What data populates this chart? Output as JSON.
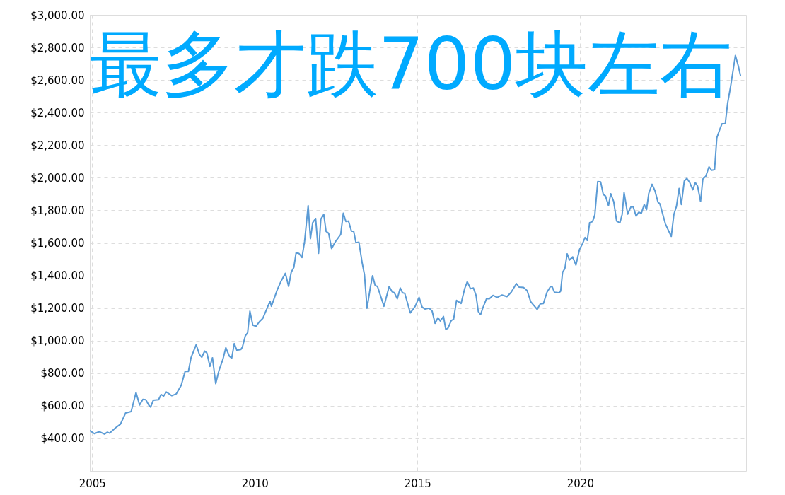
{
  "chart_data": {
    "type": "line",
    "annotations": [
      "最多才跌700块左右"
    ],
    "xlim": [
      2004.93,
      2025.1
    ],
    "xticks": [
      2005,
      2010,
      2015,
      2020,
      {
        "value": 2025,
        "label": null
      }
    ],
    "ylim": [
      200,
      3000
    ],
    "yticks": [
      {
        "value": 200,
        "label": null
      },
      {
        "value": 400,
        "label": "$400.00"
      },
      {
        "value": 600,
        "label": "$600.00"
      },
      {
        "value": 800,
        "label": "$800.00"
      },
      {
        "value": 1000,
        "label": "$1,000.00"
      },
      {
        "value": 1200,
        "label": "$1,200.00"
      },
      {
        "value": 1400,
        "label": "$1,400.00"
      },
      {
        "value": 1600,
        "label": "$1,600.00"
      },
      {
        "value": 1800,
        "label": "$1,800.00"
      },
      {
        "value": 2000,
        "label": "$2,000.00"
      },
      {
        "value": 2200,
        "label": "$2,200.00"
      },
      {
        "value": 2400,
        "label": "$2,400.00"
      },
      {
        "value": 2600,
        "label": "$2,600.00"
      },
      {
        "value": 2800,
        "label": "$2,800.00"
      },
      {
        "value": 3000,
        "label": "$3,000.00"
      }
    ],
    "grid": true,
    "marker": "none",
    "line_style": "solid",
    "series": [
      {
        "color": "#5b9bd5",
        "x": [
          2004.93,
          2005.07,
          2005.22,
          2005.38,
          2005.47,
          2005.54,
          2005.72,
          2005.87,
          2006.03,
          2006.2,
          2006.35,
          2006.46,
          2006.56,
          2006.65,
          2006.74,
          2006.8,
          2006.88,
          2007.04,
          2007.12,
          2007.2,
          2007.28,
          2007.45,
          2007.59,
          2007.74,
          2007.86,
          2007.96,
          2008.04,
          2008.2,
          2008.3,
          2008.37,
          2008.46,
          2008.53,
          2008.62,
          2008.7,
          2008.8,
          2008.9,
          2009.02,
          2009.11,
          2009.22,
          2009.29,
          2009.37,
          2009.45,
          2009.57,
          2009.62,
          2009.71,
          2009.78,
          2009.85,
          2009.94,
          2010.04,
          2010.14,
          2010.25,
          2010.47,
          2010.51,
          2010.69,
          2010.8,
          2010.94,
          2011.04,
          2011.12,
          2011.2,
          2011.27,
          2011.36,
          2011.45,
          2011.53,
          2011.64,
          2011.71,
          2011.78,
          2011.87,
          2011.96,
          2012.03,
          2012.12,
          2012.19,
          2012.27,
          2012.36,
          2012.48,
          2012.64,
          2012.72,
          2012.8,
          2012.88,
          2012.97,
          2013.04,
          2013.11,
          2013.2,
          2013.3,
          2013.37,
          2013.45,
          2013.55,
          2013.62,
          2013.7,
          2013.77,
          2013.97,
          2014.13,
          2014.22,
          2014.29,
          2014.38,
          2014.47,
          2014.54,
          2014.61,
          2014.78,
          2014.93,
          2015.05,
          2015.14,
          2015.23,
          2015.36,
          2015.45,
          2015.54,
          2015.63,
          2015.7,
          2015.8,
          2015.87,
          2015.94,
          2016.04,
          2016.11,
          2016.2,
          2016.34,
          2016.45,
          2016.53,
          2016.63,
          2016.72,
          2016.8,
          2016.87,
          2016.94,
          2017.02,
          2017.12,
          2017.21,
          2017.32,
          2017.45,
          2017.6,
          2017.75,
          2017.88,
          2018.04,
          2018.12,
          2018.26,
          2018.37,
          2018.48,
          2018.59,
          2018.68,
          2018.77,
          2018.87,
          2018.98,
          2019.09,
          2019.14,
          2019.21,
          2019.35,
          2019.4,
          2019.46,
          2019.53,
          2019.6,
          2019.67,
          2019.77,
          2019.87,
          2019.98,
          2020.07,
          2020.15,
          2020.22,
          2020.29,
          2020.38,
          2020.45,
          2020.54,
          2020.63,
          2020.71,
          2020.78,
          2020.87,
          2020.94,
          2021.03,
          2021.12,
          2021.22,
          2021.29,
          2021.35,
          2021.46,
          2021.56,
          2021.63,
          2021.72,
          2021.8,
          2021.88,
          2021.97,
          2022.04,
          2022.11,
          2022.21,
          2022.3,
          2022.39,
          2022.45,
          2022.54,
          2022.62,
          2022.72,
          2022.8,
          2022.88,
          2022.96,
          2023.04,
          2023.11,
          2023.2,
          2023.28,
          2023.37,
          2023.46,
          2023.54,
          2023.61,
          2023.7,
          2023.77,
          2023.86,
          2023.96,
          2024.04,
          2024.13,
          2024.2,
          2024.29,
          2024.36,
          2024.46,
          2024.53,
          2024.62,
          2024.71,
          2024.77,
          2024.86,
          2024.93
        ],
        "values": [
          448,
          429,
          441,
          426,
          438,
          432,
          465,
          487,
          556,
          565,
          682,
          605,
          640,
          637,
          605,
          592,
          634,
          637,
          669,
          660,
          685,
          662,
          674,
          726,
          812,
          811,
          895,
          975,
          914,
          898,
          936,
          924,
          842,
          895,
          736,
          817,
          885,
          957,
          904,
          892,
          982,
          941,
          945,
          961,
          1030,
          1048,
          1181,
          1095,
          1088,
          1116,
          1138,
          1242,
          1211,
          1312,
          1362,
          1413,
          1333,
          1420,
          1449,
          1540,
          1535,
          1510,
          1608,
          1829,
          1626,
          1724,
          1750,
          1536,
          1746,
          1775,
          1671,
          1659,
          1565,
          1608,
          1652,
          1782,
          1731,
          1734,
          1673,
          1671,
          1601,
          1604,
          1478,
          1406,
          1199,
          1326,
          1398,
          1338,
          1333,
          1211,
          1333,
          1300,
          1294,
          1257,
          1323,
          1294,
          1290,
          1170,
          1211,
          1266,
          1207,
          1194,
          1199,
          1181,
          1106,
          1141,
          1121,
          1148,
          1069,
          1077,
          1124,
          1131,
          1247,
          1228,
          1319,
          1362,
          1319,
          1323,
          1278,
          1178,
          1160,
          1207,
          1257,
          1257,
          1278,
          1265,
          1280,
          1270,
          1297,
          1350,
          1329,
          1326,
          1307,
          1239,
          1213,
          1192,
          1225,
          1228,
          1297,
          1333,
          1330,
          1297,
          1294,
          1304,
          1420,
          1442,
          1533,
          1495,
          1514,
          1464,
          1560,
          1594,
          1633,
          1615,
          1724,
          1731,
          1772,
          1977,
          1974,
          1898,
          1887,
          1829,
          1902,
          1854,
          1734,
          1723,
          1775,
          1909,
          1777,
          1821,
          1821,
          1764,
          1789,
          1782,
          1836,
          1804,
          1905,
          1960,
          1919,
          1851,
          1840,
          1775,
          1717,
          1673,
          1640,
          1775,
          1825,
          1934,
          1836,
          1980,
          1996,
          1970,
          1926,
          1970,
          1948,
          1854,
          1992,
          2009,
          2067,
          2046,
          2049,
          2245,
          2296,
          2332,
          2332,
          2455,
          2556,
          2672,
          2751,
          2686,
          2625
        ]
      }
    ]
  }
}
